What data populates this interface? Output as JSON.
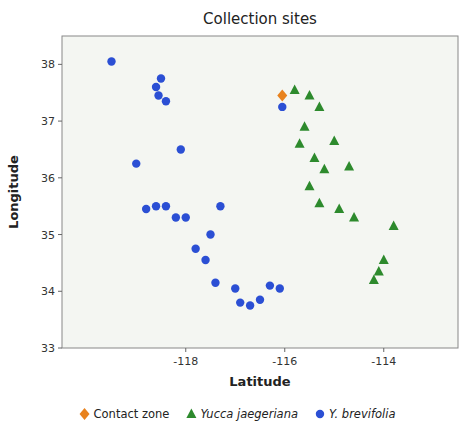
{
  "chart_data": {
    "type": "scatter",
    "title": "Collection sites",
    "xlabel": "Latitude",
    "ylabel": "Longitude",
    "xlim": [
      -120.5,
      -112.5
    ],
    "ylim": [
      33.0,
      38.5
    ],
    "xticks": [
      -118,
      -116,
      -114
    ],
    "yticks": [
      33,
      34,
      35,
      36,
      37,
      38
    ],
    "legend": "bottom",
    "series": [
      {
        "name": "Contact zone",
        "color": "#e8821e",
        "marker": "diamond",
        "x": [
          -116.05
        ],
        "values": [
          37.45
        ]
      },
      {
        "name": "Yucca jaegeriana",
        "color": "#2d8a2d",
        "marker": "triangle",
        "x": [
          -115.8,
          -115.5,
          -115.3,
          -115.6,
          -115.7,
          -115.4,
          -115.2,
          -115.5,
          -115.3,
          -114.9,
          -114.6,
          -114.1,
          -114.2,
          -114.0,
          -113.8,
          -115.0,
          -114.7
        ],
        "values": [
          37.55,
          37.45,
          37.25,
          36.9,
          36.6,
          36.35,
          36.15,
          35.85,
          35.55,
          35.45,
          35.3,
          34.35,
          34.2,
          34.55,
          35.15,
          36.65,
          36.2
        ]
      },
      {
        "name": "Y. brevifolia",
        "color": "#2b4fd4",
        "marker": "circle",
        "x": [
          -119.5,
          -118.5,
          -118.6,
          -118.55,
          -118.4,
          -118.1,
          -119.0,
          -118.8,
          -118.6,
          -118.4,
          -118.2,
          -118.0,
          -117.5,
          -117.8,
          -117.6,
          -117.4,
          -117.0,
          -116.9,
          -116.7,
          -116.5,
          -116.3,
          -116.1,
          -116.05,
          -117.3
        ],
        "values": [
          38.05,
          37.75,
          37.6,
          37.45,
          37.35,
          36.5,
          36.25,
          35.45,
          35.5,
          35.5,
          35.3,
          35.3,
          35.0,
          34.75,
          34.55,
          34.15,
          34.05,
          33.8,
          33.75,
          33.85,
          34.1,
          34.05,
          37.25,
          35.5
        ]
      }
    ]
  }
}
